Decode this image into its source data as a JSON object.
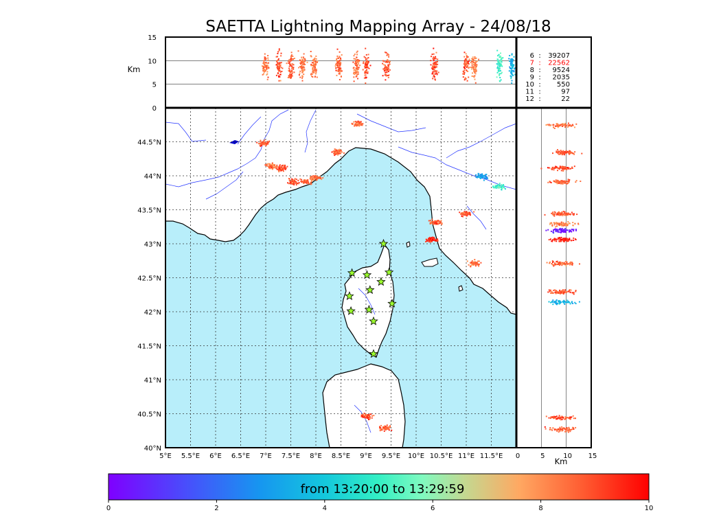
{
  "figure": {
    "title": "SAETTA Lightning Mapping Array - 24/08/18",
    "colorbar_label": "from 13:20:00 to 13:29:59",
    "colormap": "rainbow (purple-blue-cyan-green-yellow-orange-red)",
    "sea_color": "#b8eefa",
    "land_color": "#ffffff",
    "river_color": "#2233ff",
    "station_marker": "green-star"
  },
  "chart_data": [
    {
      "name_id": "map",
      "type": "scatter",
      "xlim": [
        5,
        12
      ],
      "ylim": [
        40,
        45
      ],
      "x_ticks": [
        "5°E",
        "5.5°E",
        "6°E",
        "6.5°E",
        "7°E",
        "7.5°E",
        "8°E",
        "8.5°E",
        "9°E",
        "9.5°E",
        "10°E",
        "10.5°E",
        "11°E",
        "11.5°E"
      ],
      "y_ticks": [
        "40°N",
        "40.5°N",
        "41°N",
        "41.5°N",
        "42°N",
        "42.5°N",
        "43°N",
        "43.5°N",
        "44°N",
        "44.5°N"
      ],
      "grid": true,
      "stations": [
        {
          "lon": 9.35,
          "lat": 43.0
        },
        {
          "lon": 8.72,
          "lat": 42.57
        },
        {
          "lon": 9.02,
          "lat": 42.54
        },
        {
          "lon": 9.46,
          "lat": 42.58
        },
        {
          "lon": 9.3,
          "lat": 42.44
        },
        {
          "lon": 9.08,
          "lat": 42.32
        },
        {
          "lon": 8.67,
          "lat": 42.23
        },
        {
          "lon": 9.52,
          "lat": 42.12
        },
        {
          "lon": 8.7,
          "lat": 42.01
        },
        {
          "lon": 9.06,
          "lat": 42.03
        },
        {
          "lon": 9.15,
          "lat": 41.86
        },
        {
          "lon": 9.15,
          "lat": 41.38
        }
      ],
      "source_clusters": [
        {
          "lon": 7.1,
          "lat": 44.15,
          "time": 8.5
        },
        {
          "lon": 7.3,
          "lat": 44.12,
          "time": 9.1
        },
        {
          "lon": 7.55,
          "lat": 43.92,
          "time": 8.9
        },
        {
          "lon": 7.8,
          "lat": 43.92,
          "time": 8.6
        },
        {
          "lon": 7.98,
          "lat": 43.98,
          "time": 8.3
        },
        {
          "lon": 8.42,
          "lat": 44.36,
          "time": 8.7
        },
        {
          "lon": 6.95,
          "lat": 44.49,
          "time": 8.8
        },
        {
          "lon": 8.82,
          "lat": 44.77,
          "time": 8.5
        },
        {
          "lon": 10.38,
          "lat": 43.32,
          "time": 8.8
        },
        {
          "lon": 10.98,
          "lat": 43.45,
          "time": 8.9
        },
        {
          "lon": 11.65,
          "lat": 43.85,
          "time": 5.1
        },
        {
          "lon": 11.3,
          "lat": 44.0,
          "time": 3.0
        },
        {
          "lon": 11.15,
          "lat": 42.72,
          "time": 8.6
        },
        {
          "lon": 9.0,
          "lat": 40.47,
          "time": 9.0
        },
        {
          "lon": 9.38,
          "lat": 40.3,
          "time": 8.8
        },
        {
          "lon": 10.3,
          "lat": 43.07,
          "time": 9.5
        }
      ]
    },
    {
      "name_id": "altitude-longitude",
      "type": "scatter",
      "xlim": [
        5,
        12
      ],
      "ylim": [
        0,
        15
      ],
      "ylabel": "Km",
      "y_ticks": [
        "0",
        "5",
        "10",
        "15"
      ],
      "source_clusters": [
        {
          "lon": 6.98,
          "time": 8.5
        },
        {
          "lon": 7.25,
          "time": 8.9
        },
        {
          "lon": 7.5,
          "time": 8.7
        },
        {
          "lon": 7.72,
          "time": 8.2
        },
        {
          "lon": 7.95,
          "time": 8.4
        },
        {
          "lon": 8.45,
          "time": 8.6
        },
        {
          "lon": 8.8,
          "time": 8.5
        },
        {
          "lon": 9.0,
          "time": 8.9
        },
        {
          "lon": 9.4,
          "time": 8.8
        },
        {
          "lon": 10.35,
          "time": 9.0
        },
        {
          "lon": 10.98,
          "time": 8.8
        },
        {
          "lon": 11.15,
          "time": 8.3
        },
        {
          "lon": 11.65,
          "time": 5.2
        },
        {
          "lon": 11.9,
          "time": 3.5
        }
      ]
    },
    {
      "name_id": "latitude-altitude",
      "type": "scatter",
      "xlim": [
        0,
        15
      ],
      "ylim": [
        40,
        45
      ],
      "xlabel": "Km",
      "x_ticks": [
        "0",
        "5",
        "10",
        "15"
      ],
      "source_clusters": [
        {
          "lat": 44.75,
          "time": 8.5
        },
        {
          "lat": 44.35,
          "time": 8.8
        },
        {
          "lat": 44.12,
          "time": 9.0
        },
        {
          "lat": 43.92,
          "time": 8.6
        },
        {
          "lat": 43.45,
          "time": 8.9
        },
        {
          "lat": 43.3,
          "time": 8.2
        },
        {
          "lat": 43.2,
          "time": 0.5
        },
        {
          "lat": 43.07,
          "time": 9.5
        },
        {
          "lat": 42.72,
          "time": 8.6
        },
        {
          "lat": 42.3,
          "time": 8.8
        },
        {
          "lat": 42.15,
          "time": 3.5
        },
        {
          "lat": 40.45,
          "time": 8.9
        },
        {
          "lat": 40.28,
          "time": 8.7
        }
      ]
    },
    {
      "name_id": "stats",
      "type": "table",
      "rows": [
        {
          "label": "6",
          "sep": ":",
          "value": "39207",
          "color": "#000000"
        },
        {
          "label": "7",
          "sep": ":",
          "value": "22562",
          "color": "#ff0000"
        },
        {
          "label": "8",
          "sep": ":",
          "value": "9524",
          "color": "#000000"
        },
        {
          "label": "9",
          "sep": ":",
          "value": "2035",
          "color": "#000000"
        },
        {
          "label": "10",
          "sep": ":",
          "value": "550",
          "color": "#000000"
        },
        {
          "label": "11",
          "sep": ":",
          "value": "97",
          "color": "#000000"
        },
        {
          "label": "12",
          "sep": ":",
          "value": "22",
          "color": "#000000"
        }
      ]
    },
    {
      "name_id": "colorbar",
      "type": "heatmap",
      "range": [
        0,
        10
      ],
      "ticks": [
        "0",
        "2",
        "4",
        "6",
        "8",
        "10"
      ]
    }
  ]
}
